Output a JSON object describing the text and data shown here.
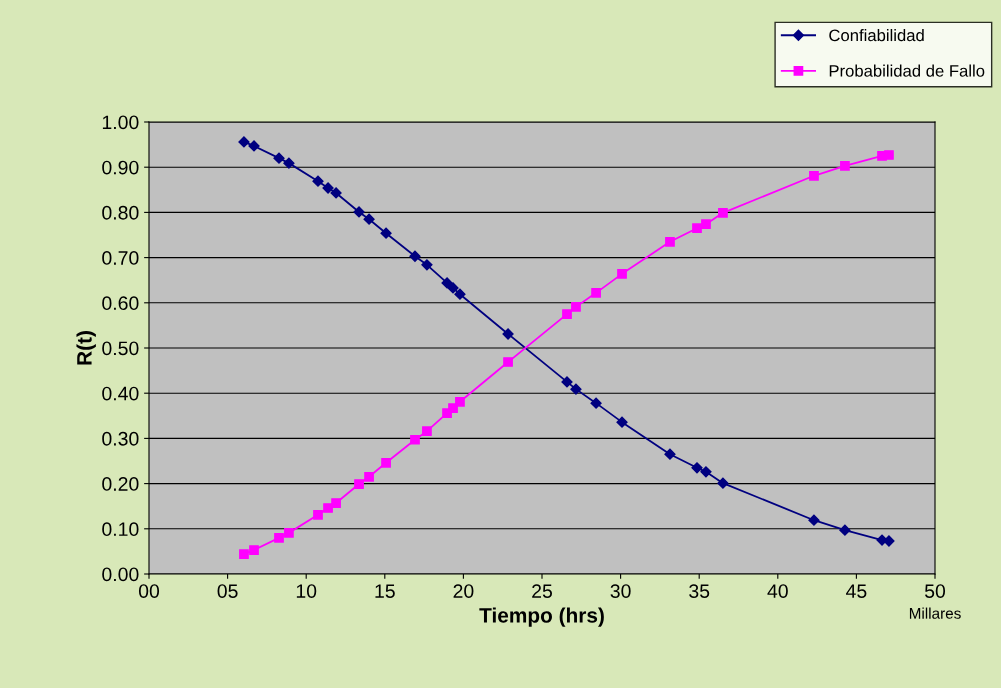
{
  "chart_data": {
    "type": "line",
    "xlabel": "Tiempo (hrs)",
    "ylabel": "R(t)",
    "x": [
      6.04,
      6.68,
      8.27,
      8.9,
      10.75,
      11.39,
      11.9,
      13.36,
      14.0,
      15.08,
      16.92,
      17.68,
      18.96,
      19.34,
      19.78,
      22.84,
      26.59,
      27.16,
      28.44,
      30.09,
      33.14,
      34.86,
      35.43,
      36.51,
      42.3,
      44.27,
      46.63,
      47.07
    ],
    "series": [
      {
        "name": "Confiabilidad",
        "color": "#000080",
        "marker": "diamond",
        "values": [
          0.956,
          0.947,
          0.92,
          0.909,
          0.869,
          0.854,
          0.843,
          0.801,
          0.785,
          0.754,
          0.703,
          0.684,
          0.644,
          0.633,
          0.619,
          0.531,
          0.425,
          0.409,
          0.378,
          0.336,
          0.265,
          0.235,
          0.226,
          0.201,
          0.119,
          0.097,
          0.075,
          0.073
        ]
      },
      {
        "name": "Probabilidad de Fallo",
        "color": "#ff00ff",
        "marker": "square",
        "values": [
          0.044,
          0.053,
          0.08,
          0.091,
          0.131,
          0.146,
          0.157,
          0.199,
          0.215,
          0.246,
          0.297,
          0.316,
          0.356,
          0.367,
          0.381,
          0.469,
          0.575,
          0.591,
          0.622,
          0.664,
          0.735,
          0.765,
          0.774,
          0.799,
          0.881,
          0.903,
          0.925,
          0.927
        ]
      }
    ],
    "xlim": [
      0,
      50
    ],
    "xticks": [
      {
        "value": 0,
        "label": "00"
      },
      {
        "value": 5,
        "label": "05"
      },
      {
        "value": 10,
        "label": "10"
      },
      {
        "value": 15,
        "label": "15"
      },
      {
        "value": 20,
        "label": "20"
      },
      {
        "value": 25,
        "label": "25"
      },
      {
        "value": 30,
        "label": "30"
      },
      {
        "value": 35,
        "label": "35"
      },
      {
        "value": 40,
        "label": "40"
      },
      {
        "value": 45,
        "label": "45"
      },
      {
        "value": 50,
        "label": "50"
      }
    ],
    "ylim": [
      0,
      1
    ],
    "yticks": [
      {
        "value": 0,
        "label": "0.00"
      },
      {
        "value": 0.1,
        "label": "0.10"
      },
      {
        "value": 0.2,
        "label": "0.20"
      },
      {
        "value": 0.3,
        "label": "0.30"
      },
      {
        "value": 0.4,
        "label": "0.40"
      },
      {
        "value": 0.5,
        "label": "0.50"
      },
      {
        "value": 0.6,
        "label": "0.60"
      },
      {
        "value": 0.7,
        "label": "0.70"
      },
      {
        "value": 0.8,
        "label": "0.80"
      },
      {
        "value": 0.9,
        "label": "0.90"
      },
      {
        "value": 1,
        "label": "1.00"
      }
    ],
    "grid": "y",
    "legend": "top right",
    "line_style": "solid",
    "annotations": [
      "Millares"
    ]
  }
}
